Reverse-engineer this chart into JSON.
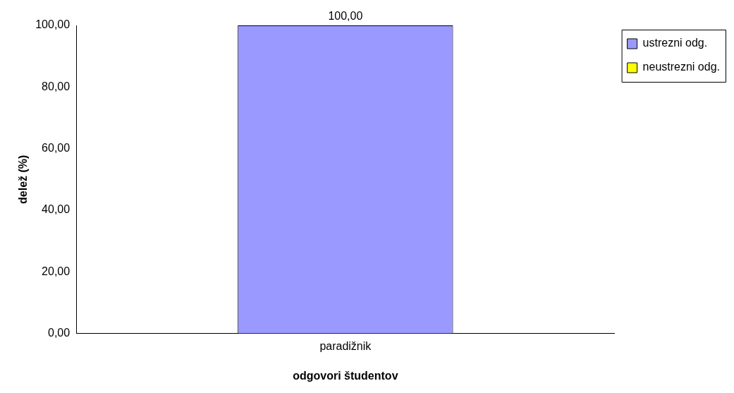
{
  "chart_data": {
    "type": "bar",
    "xlabel": "odgovori študentov",
    "ylabel": "delež (%)",
    "categories": [
      "paradižnik"
    ],
    "stacked": true,
    "series": [
      {
        "name": "ustrezni odg.",
        "color": "#9999ff",
        "values": [
          100
        ],
        "value_labels": [
          "100,00"
        ]
      },
      {
        "name": "neustrezni odg.",
        "color": "#ffff00",
        "values": [
          0
        ],
        "value_labels": [
          null
        ]
      }
    ],
    "ylim": [
      0,
      100
    ],
    "yticks": [
      {
        "value": 0,
        "label": "0,00"
      },
      {
        "value": 20,
        "label": "20,00"
      },
      {
        "value": 40,
        "label": "40,00"
      },
      {
        "value": 60,
        "label": "60,00"
      },
      {
        "value": 80,
        "label": "80,00"
      },
      {
        "value": 100,
        "label": "100,00"
      }
    ],
    "grid": false,
    "legend": "right"
  }
}
